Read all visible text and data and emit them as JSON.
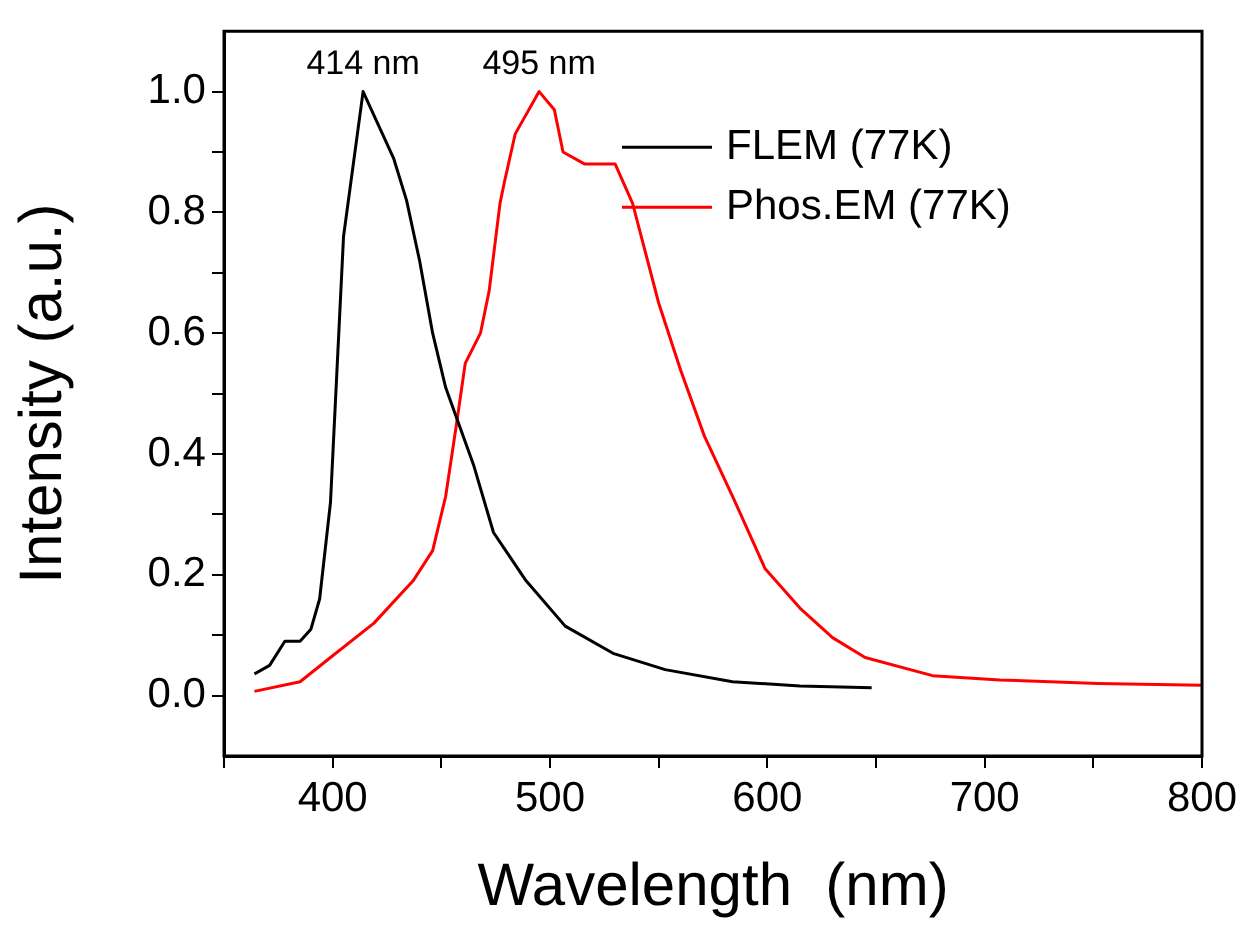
{
  "chart_data": {
    "type": "line",
    "xlabel": "Wavelength  (nm)",
    "ylabel": "Intensity (a.u.)",
    "xlim": [
      350,
      800
    ],
    "xticks": [
      {
        "value": 350,
        "label": null
      },
      400,
      {
        "value": 450,
        "label": null
      },
      500,
      {
        "value": 550,
        "label": null
      },
      600,
      {
        "value": 650,
        "label": null
      },
      700,
      {
        "value": 750,
        "label": null
      },
      800
    ],
    "ylim": [
      -0.1,
      1.1
    ],
    "yticks": [
      {
        "value": 0,
        "label": "0.0"
      },
      {
        "value": 0.1,
        "label": null
      },
      {
        "value": 0.2,
        "label": "0.2"
      },
      {
        "value": 0.3,
        "label": null
      },
      {
        "value": 0.4,
        "label": "0.4"
      },
      {
        "value": 0.5,
        "label": null
      },
      {
        "value": 0.6,
        "label": "0.6"
      },
      {
        "value": 0.7,
        "label": null
      },
      {
        "value": 0.8,
        "label": "0.8"
      },
      {
        "value": 0.9,
        "label": null
      },
      {
        "value": 1.0,
        "label": "1.0"
      }
    ],
    "grid": false,
    "legend": "top right",
    "marker": "none",
    "line_style": "solid",
    "annotations": [
      {
        "text": "414 nm",
        "x": 414,
        "y": 1.0
      },
      {
        "text": "495 nm",
        "x": 495,
        "y": 1.0
      }
    ],
    "series": [
      {
        "name": "FLEM (77K)",
        "color": "#000000",
        "x": [
          364,
          371,
          378,
          385,
          390,
          394,
          399,
          402,
          405,
          414,
          428,
          434,
          440,
          446,
          452,
          458,
          465,
          474,
          489,
          507,
          529,
          553,
          584,
          615,
          648
        ],
        "values": [
          0.036,
          0.05,
          0.09,
          0.09,
          0.11,
          0.16,
          0.32,
          0.54,
          0.76,
          1.0,
          0.89,
          0.82,
          0.72,
          0.6,
          0.51,
          0.45,
          0.38,
          0.27,
          0.19,
          0.115,
          0.07,
          0.043,
          0.023,
          0.016,
          0.013
        ]
      },
      {
        "name": "Phos.EM (77K)",
        "color": "#ff0000",
        "x": [
          364,
          385,
          400,
          419,
          437,
          446,
          452,
          457,
          461,
          468,
          472,
          477,
          479,
          484,
          495,
          502,
          506,
          516,
          530,
          538,
          550,
          560,
          571,
          584,
          599,
          615,
          630,
          645,
          676,
          707,
          752,
          800
        ],
        "values": [
          0.007,
          0.023,
          0.066,
          0.12,
          0.19,
          0.24,
          0.33,
          0.45,
          0.55,
          0.6,
          0.67,
          0.815,
          0.85,
          0.93,
          1.0,
          0.97,
          0.9,
          0.88,
          0.88,
          0.815,
          0.65,
          0.54,
          0.43,
          0.33,
          0.21,
          0.145,
          0.096,
          0.063,
          0.033,
          0.026,
          0.02,
          0.017
        ]
      }
    ]
  }
}
